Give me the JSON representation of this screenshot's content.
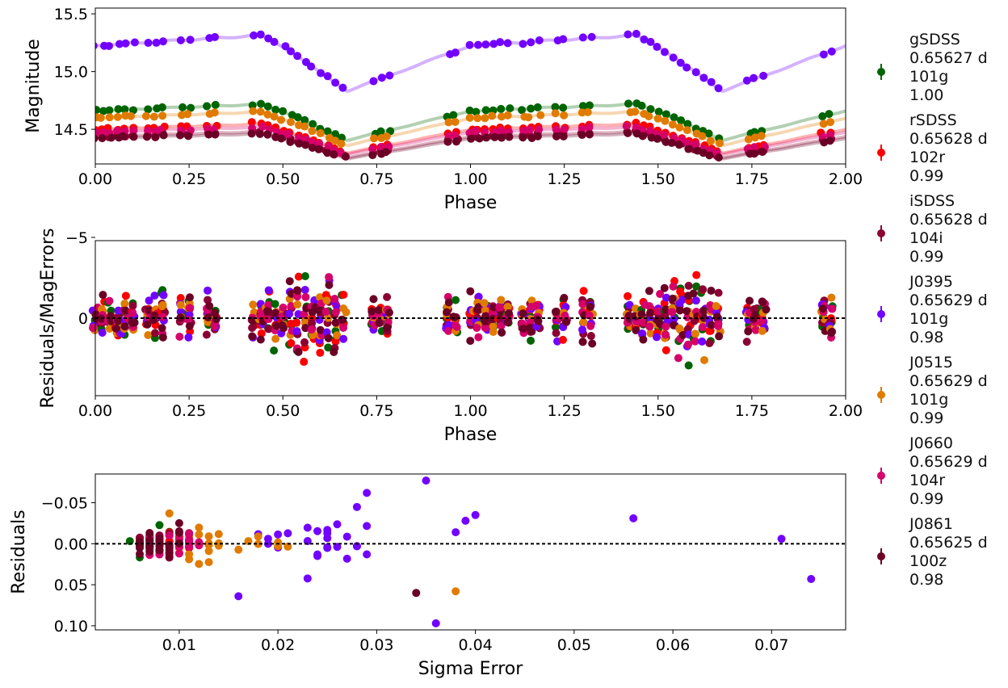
{
  "chart_data": [
    {
      "type": "scatter",
      "panel": "light-curve",
      "xlabel": "Phase",
      "ylabel": "Magnitude",
      "xlim": [
        0,
        2
      ],
      "ylim_inverted": [
        15.55,
        14.2
      ],
      "xticks": [
        "0.00",
        "0.25",
        "0.50",
        "0.75",
        "1.00",
        "1.25",
        "1.50",
        "1.75",
        "2.00"
      ],
      "yticks": [
        "14.5",
        "15.0",
        "15.5"
      ],
      "period_days": 0.65627,
      "series": [
        {
          "name": "gSDSS",
          "color": "#006400",
          "model": {
            "base": 14.76,
            "amp": 0.355
          }
        },
        {
          "name": "rSDSS",
          "color": "#ff0000",
          "model": {
            "base": 14.58,
            "amp": 0.285
          }
        },
        {
          "name": "iSDSS",
          "color": "#8b0033",
          "model": {
            "base": 14.51,
            "amp": 0.255
          }
        },
        {
          "name": "J0395",
          "color": "#7200ff",
          "model": {
            "base": 15.38,
            "amp": 0.55
          }
        },
        {
          "name": "J0515",
          "color": "#e07b00",
          "model": {
            "base": 14.69,
            "amp": 0.33
          }
        },
        {
          "name": "J0660",
          "color": "#d6006a",
          "model": {
            "base": 14.55,
            "amp": 0.265
          }
        },
        {
          "name": "J0861",
          "color": "#6b0026",
          "model": {
            "base": 14.49,
            "amp": 0.245
          }
        }
      ]
    },
    {
      "type": "scatter",
      "panel": "normalized-residuals",
      "xlabel": "Phase",
      "ylabel": "Residuals/MagErrors",
      "xlim": [
        0,
        2
      ],
      "ylim_inverted": [
        -4.8,
        4.8
      ],
      "xticks": [
        "0.00",
        "0.25",
        "0.50",
        "0.75",
        "1.00",
        "1.25",
        "1.50",
        "1.75",
        "2.00"
      ],
      "yticks": [
        "−5",
        "0"
      ],
      "reference_line": 0
    },
    {
      "type": "scatter",
      "panel": "residuals-vs-error",
      "xlabel": "Sigma Error",
      "ylabel": "Residuals",
      "xlim": [
        0.0015,
        0.0775
      ],
      "ylim_inverted": [
        -0.085,
        0.105
      ],
      "xticks": [
        "0.01",
        "0.02",
        "0.03",
        "0.04",
        "0.05",
        "0.06",
        "0.07"
      ],
      "yticks": [
        "−0.05",
        "0.00",
        "0.05",
        "0.10"
      ],
      "reference_line": 0,
      "highlighted_points": [
        {
          "x": 0.035,
          "y": -0.077
        },
        {
          "x": 0.029,
          "y": -0.062
        },
        {
          "x": 0.036,
          "y": 0.097
        },
        {
          "x": 0.056,
          "y": -0.031
        },
        {
          "x": 0.071,
          "y": -0.006
        },
        {
          "x": 0.074,
          "y": 0.043
        },
        {
          "x": 0.034,
          "y": 0.06
        },
        {
          "x": 0.038,
          "y": 0.058
        },
        {
          "x": 0.016,
          "y": 0.064
        },
        {
          "x": 0.04,
          "y": -0.035
        },
        {
          "x": 0.039,
          "y": -0.028
        },
        {
          "x": 0.038,
          "y": -0.014
        }
      ]
    }
  ],
  "legend": [
    {
      "name": "gSDSS",
      "period": "0.65627 d",
      "n": "101g",
      "score": "1.00",
      "color": "#006400"
    },
    {
      "name": "rSDSS",
      "period": "0.65628 d",
      "n": "102r",
      "score": "0.99",
      "color": "#ff0000"
    },
    {
      "name": "iSDSS",
      "period": "0.65628 d",
      "n": "104i",
      "score": "0.99",
      "color": "#8b0033"
    },
    {
      "name": "J0395",
      "period": "0.65629 d",
      "n": "101g",
      "score": "0.98",
      "color": "#7200ff"
    },
    {
      "name": "J0515",
      "period": "0.65629 d",
      "n": "101g",
      "score": "0.99",
      "color": "#e07b00"
    },
    {
      "name": "J0660",
      "period": "0.65629 d",
      "n": "104r",
      "score": "0.99",
      "color": "#d6006a"
    },
    {
      "name": "J0861",
      "period": "0.65625 d",
      "n": "100z",
      "score": "0.98",
      "color": "#6b0026"
    }
  ]
}
